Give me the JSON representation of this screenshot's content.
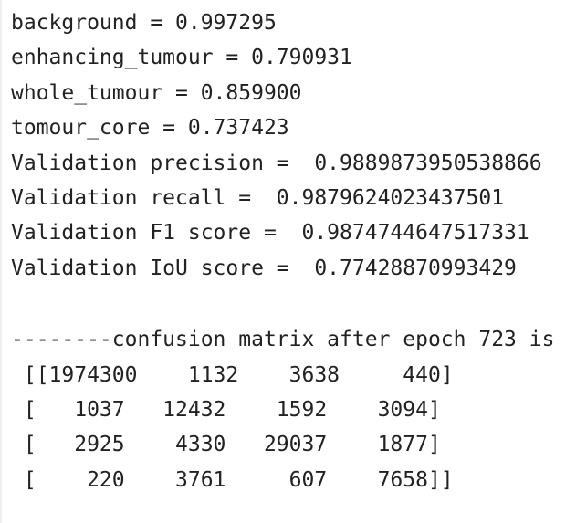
{
  "output": {
    "metrics": [
      "background = 0.997295",
      "enhancing_tumour = 0.790931",
      "whole_tumour = 0.859900",
      "tomour_core = 0.737423",
      "Validation precision =  0.9889873950538866",
      "Validation recall =  0.9879624023437501",
      "Validation F1 score =  0.9874744647517331",
      "Validation IoU score =  0.77428870993429"
    ],
    "matrix_header": "--------confusion matrix after epoch 723 is",
    "matrix_rows": [
      " [[1974300    1132    3638     440]",
      " [   1037   12432    1592    3094]",
      " [   2925    4330   29037    1877]",
      " [    220    3761     607    7658]]"
    ]
  }
}
